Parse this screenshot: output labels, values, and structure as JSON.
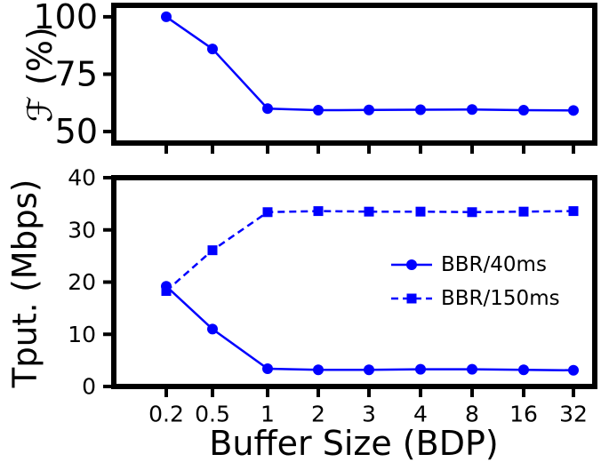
{
  "chart_data": [
    {
      "type": "line",
      "categories": [
        "0.2",
        "0.5",
        "1",
        "2",
        "3",
        "4",
        "8",
        "16",
        "32"
      ],
      "ylabel": "ℱ (%)",
      "ylim": [
        45,
        105
      ],
      "yticks": [
        50,
        75,
        100
      ],
      "grid": false,
      "legend": "none",
      "series": [
        {
          "name": "",
          "values": [
            100,
            86,
            60,
            59.3,
            59.4,
            59.5,
            59.6,
            59.3,
            59.2
          ],
          "color": "#0000ff",
          "marker": "circle",
          "dash": "solid"
        }
      ]
    },
    {
      "type": "line",
      "categories": [
        "0.2",
        "0.5",
        "1",
        "2",
        "3",
        "4",
        "8",
        "16",
        "32"
      ],
      "xlabel": "Buffer Size (BDP)",
      "ylabel": "Tput. (Mbps)",
      "ylim": [
        0,
        40
      ],
      "yticks": [
        0,
        10,
        20,
        30,
        40
      ],
      "grid": false,
      "legend": "right",
      "series": [
        {
          "name": "BBR/40ms",
          "values": [
            19.2,
            11,
            3.4,
            3.2,
            3.2,
            3.3,
            3.3,
            3.2,
            3.1
          ],
          "color": "#0000ff",
          "marker": "circle",
          "dash": "solid"
        },
        {
          "name": "BBR/150ms",
          "values": [
            18.3,
            26.1,
            33.4,
            33.6,
            33.5,
            33.5,
            33.4,
            33.5,
            33.6
          ],
          "color": "#0000ff",
          "marker": "square",
          "dash": "dashed"
        }
      ]
    }
  ]
}
